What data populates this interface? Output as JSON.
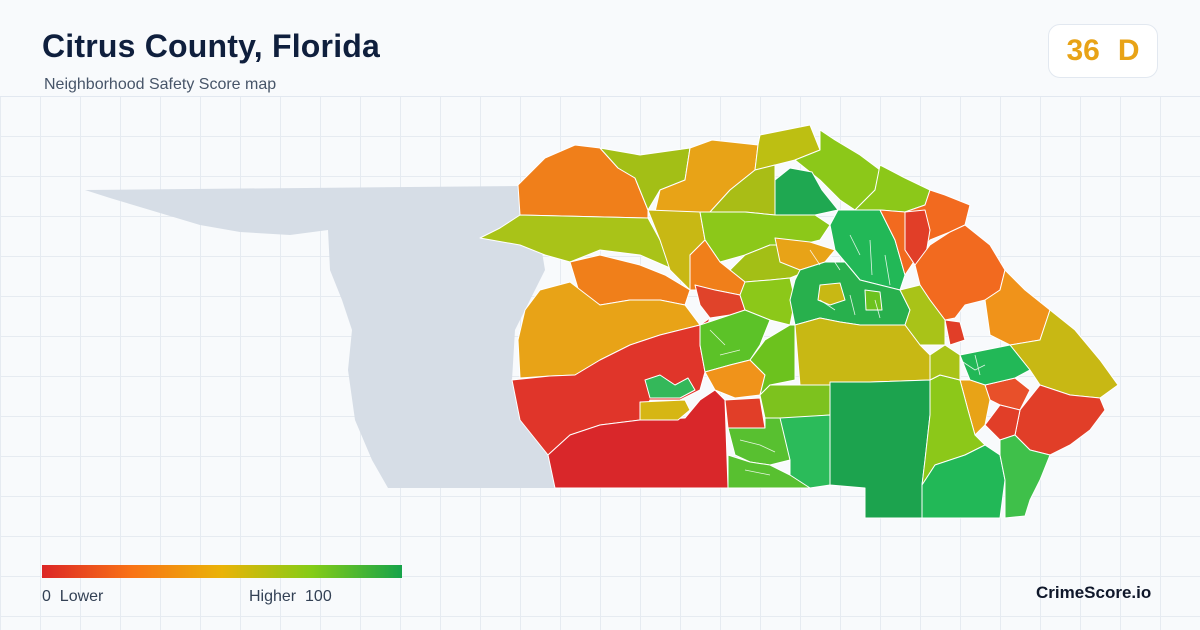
{
  "header": {
    "title": "Citrus County, Florida",
    "subtitle": "Neighborhood Safety Score map"
  },
  "score": {
    "value": "36",
    "grade": "D",
    "color": "#e8a317"
  },
  "legend": {
    "min_value": "0",
    "min_label": "Lower",
    "max_label": "Higher",
    "max_value": "100",
    "low_color": "#dc2626",
    "high_color": "#16a34a"
  },
  "brand": "CrimeScore.io",
  "map_colors": {
    "water": "#d6dde6",
    "land_border": "#ffffff"
  }
}
